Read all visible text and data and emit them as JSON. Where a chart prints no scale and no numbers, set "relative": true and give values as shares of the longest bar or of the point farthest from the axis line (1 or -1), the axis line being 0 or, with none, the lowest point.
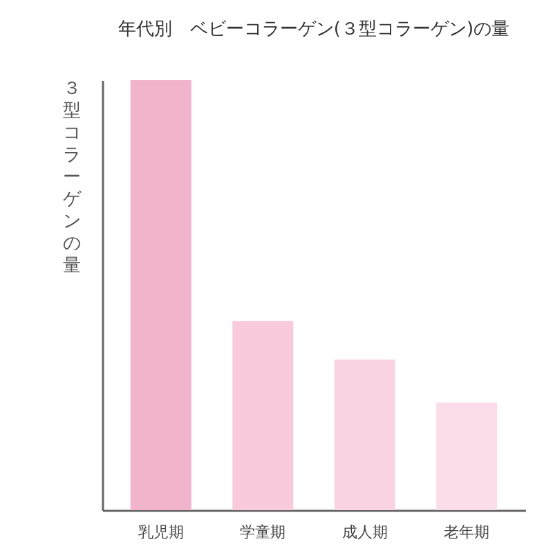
{
  "chart_data": {
    "type": "bar",
    "title": "年代別　ベビーコラーゲン(３型コラーゲン)の量",
    "ylabel": "３型コラーゲンの量",
    "categories": [
      "乳児期",
      "学童期",
      "成人期",
      "老年期"
    ],
    "values": [
      1,
      0.44,
      0.35,
      0.25
    ],
    "colors": [
      "#f2b3cc",
      "#f8cadb",
      "#f9d3e1",
      "#fadde8"
    ],
    "relative": true,
    "grid": false
  }
}
